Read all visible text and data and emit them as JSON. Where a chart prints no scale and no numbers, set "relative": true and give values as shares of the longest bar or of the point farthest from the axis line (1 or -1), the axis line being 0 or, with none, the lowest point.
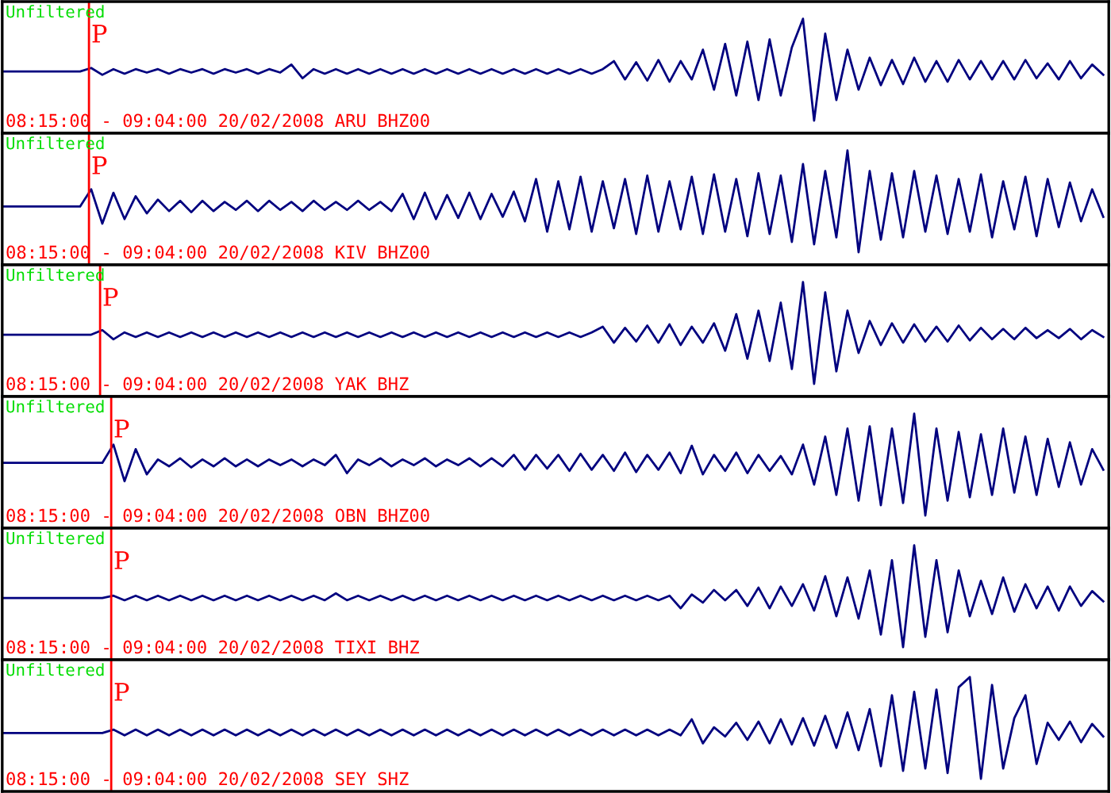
{
  "chart_data": [
    {
      "type": "line",
      "relative": true,
      "categories": [
        null,
        null,
        null,
        null,
        null,
        null,
        null,
        null,
        null,
        null,
        null,
        null,
        null,
        null,
        null,
        null,
        null,
        null,
        null,
        null,
        null,
        null,
        null,
        null,
        null,
        null,
        null,
        null,
        null,
        null,
        null,
        null,
        null,
        null,
        null,
        null,
        null,
        null,
        null,
        null,
        null,
        null,
        null,
        null,
        null,
        null,
        null,
        null,
        null,
        null,
        null,
        null,
        null,
        null,
        null,
        null,
        null,
        null,
        null,
        null,
        null,
        null,
        null,
        null,
        null,
        null,
        null,
        null,
        null,
        null,
        null,
        null,
        null,
        null,
        null,
        null,
        null,
        null,
        null,
        null,
        null,
        null,
        null,
        null,
        null,
        null,
        null,
        null,
        null,
        null,
        null,
        null,
        null,
        null,
        null,
        null,
        null,
        null,
        null,
        null
      ],
      "series": [
        {
          "color": "#00007f",
          "values": [
            0.54,
            0.54,
            0.54,
            0.54,
            0.54,
            0.54,
            0.54,
            0.54,
            0.57,
            0.51,
            0.56,
            0.52,
            0.56,
            0.53,
            0.56,
            0.52,
            0.56,
            0.53,
            0.56,
            0.52,
            0.56,
            0.53,
            0.56,
            0.52,
            0.56,
            0.53,
            0.6,
            0.48,
            0.56,
            0.52,
            0.56,
            0.52,
            0.56,
            0.52,
            0.56,
            0.52,
            0.56,
            0.52,
            0.56,
            0.52,
            0.56,
            0.52,
            0.56,
            0.52,
            0.56,
            0.52,
            0.56,
            0.52,
            0.56,
            0.52,
            0.56,
            0.52,
            0.56,
            0.52,
            0.56,
            0.63,
            0.47,
            0.62,
            0.46,
            0.64,
            0.45,
            0.63,
            0.47,
            0.73,
            0.38,
            0.78,
            0.33,
            0.8,
            0.29,
            0.82,
            0.33,
            0.75,
            1.0,
            0.11,
            0.87,
            0.29,
            0.73,
            0.38,
            0.66,
            0.42,
            0.64,
            0.43,
            0.66,
            0.45,
            0.63,
            0.45,
            0.64,
            0.47,
            0.63,
            0.47,
            0.63,
            0.47,
            0.64,
            0.48,
            0.61,
            0.47,
            0.63,
            0.48,
            0.6,
            0.51
          ]
        }
      ],
      "annotations": [
        "Unfiltered",
        "P",
        "08:15:00 - 09:04:00 20/02/2008 ARU BHZ00"
      ]
    },
    {
      "type": "line",
      "relative": true,
      "categories": [
        null,
        null,
        null,
        null,
        null,
        null,
        null,
        null,
        null,
        null,
        null,
        null,
        null,
        null,
        null,
        null,
        null,
        null,
        null,
        null,
        null,
        null,
        null,
        null,
        null,
        null,
        null,
        null,
        null,
        null,
        null,
        null,
        null,
        null,
        null,
        null,
        null,
        null,
        null,
        null,
        null,
        null,
        null,
        null,
        null,
        null,
        null,
        null,
        null,
        null,
        null,
        null,
        null,
        null,
        null,
        null,
        null,
        null,
        null,
        null,
        null,
        null,
        null,
        null,
        null,
        null,
        null,
        null,
        null,
        null,
        null,
        null,
        null,
        null,
        null,
        null,
        null,
        null,
        null,
        null,
        null,
        null,
        null,
        null,
        null,
        null,
        null,
        null,
        null,
        null,
        null,
        null,
        null,
        null,
        null,
        null,
        null,
        null,
        null,
        null
      ],
      "series": [
        {
          "color": "#00007f",
          "values": [
            0.51,
            0.51,
            0.51,
            0.51,
            0.51,
            0.51,
            0.51,
            0.51,
            0.66,
            0.36,
            0.63,
            0.4,
            0.6,
            0.45,
            0.57,
            0.47,
            0.56,
            0.46,
            0.56,
            0.47,
            0.55,
            0.48,
            0.56,
            0.47,
            0.56,
            0.48,
            0.55,
            0.47,
            0.56,
            0.48,
            0.55,
            0.48,
            0.56,
            0.48,
            0.55,
            0.47,
            0.62,
            0.4,
            0.63,
            0.4,
            0.61,
            0.41,
            0.63,
            0.4,
            0.62,
            0.42,
            0.64,
            0.38,
            0.75,
            0.29,
            0.73,
            0.31,
            0.77,
            0.29,
            0.73,
            0.32,
            0.75,
            0.27,
            0.78,
            0.29,
            0.73,
            0.31,
            0.77,
            0.27,
            0.79,
            0.29,
            0.75,
            0.25,
            0.8,
            0.27,
            0.78,
            0.2,
            0.88,
            0.18,
            0.82,
            0.24,
            1.0,
            0.11,
            0.82,
            0.22,
            0.8,
            0.24,
            0.82,
            0.29,
            0.78,
            0.27,
            0.75,
            0.29,
            0.79,
            0.24,
            0.73,
            0.31,
            0.77,
            0.25,
            0.75,
            0.33,
            0.72,
            0.38,
            0.66,
            0.42
          ]
        }
      ],
      "annotations": [
        "Unfiltered",
        "P",
        "08:15:00 - 09:04:00 20/02/2008 KIV BHZ00"
      ]
    },
    {
      "type": "line",
      "relative": true,
      "categories": [
        null,
        null,
        null,
        null,
        null,
        null,
        null,
        null,
        null,
        null,
        null,
        null,
        null,
        null,
        null,
        null,
        null,
        null,
        null,
        null,
        null,
        null,
        null,
        null,
        null,
        null,
        null,
        null,
        null,
        null,
        null,
        null,
        null,
        null,
        null,
        null,
        null,
        null,
        null,
        null,
        null,
        null,
        null,
        null,
        null,
        null,
        null,
        null,
        null,
        null,
        null,
        null,
        null,
        null,
        null,
        null,
        null,
        null,
        null,
        null,
        null,
        null,
        null,
        null,
        null,
        null,
        null,
        null,
        null,
        null,
        null,
        null,
        null,
        null,
        null,
        null,
        null,
        null,
        null,
        null,
        null,
        null,
        null,
        null,
        null,
        null,
        null,
        null,
        null,
        null,
        null,
        null,
        null,
        null,
        null,
        null,
        null,
        null,
        null,
        null
      ],
      "series": [
        {
          "color": "#00007f",
          "values": [
            0.54,
            0.54,
            0.54,
            0.54,
            0.54,
            0.54,
            0.54,
            0.54,
            0.54,
            0.58,
            0.5,
            0.56,
            0.52,
            0.56,
            0.52,
            0.56,
            0.52,
            0.56,
            0.52,
            0.56,
            0.52,
            0.56,
            0.52,
            0.56,
            0.52,
            0.56,
            0.52,
            0.56,
            0.52,
            0.56,
            0.52,
            0.56,
            0.52,
            0.56,
            0.52,
            0.56,
            0.52,
            0.56,
            0.52,
            0.56,
            0.52,
            0.56,
            0.52,
            0.56,
            0.52,
            0.56,
            0.52,
            0.56,
            0.52,
            0.56,
            0.52,
            0.56,
            0.52,
            0.56,
            0.61,
            0.47,
            0.6,
            0.48,
            0.62,
            0.47,
            0.63,
            0.45,
            0.61,
            0.47,
            0.64,
            0.4,
            0.72,
            0.33,
            0.75,
            0.31,
            0.82,
            0.24,
            1.0,
            0.11,
            0.91,
            0.22,
            0.75,
            0.38,
            0.66,
            0.45,
            0.64,
            0.47,
            0.63,
            0.48,
            0.61,
            0.48,
            0.62,
            0.49,
            0.6,
            0.5,
            0.59,
            0.5,
            0.6,
            0.51,
            0.58,
            0.51,
            0.59,
            0.5,
            0.58,
            0.52
          ]
        }
      ],
      "annotations": [
        "Unfiltered",
        "P",
        "08:15:00 - 09:04:00 20/02/2008 YAK BHZ"
      ]
    },
    {
      "type": "line",
      "relative": true,
      "categories": [
        null,
        null,
        null,
        null,
        null,
        null,
        null,
        null,
        null,
        null,
        null,
        null,
        null,
        null,
        null,
        null,
        null,
        null,
        null,
        null,
        null,
        null,
        null,
        null,
        null,
        null,
        null,
        null,
        null,
        null,
        null,
        null,
        null,
        null,
        null,
        null,
        null,
        null,
        null,
        null,
        null,
        null,
        null,
        null,
        null,
        null,
        null,
        null,
        null,
        null,
        null,
        null,
        null,
        null,
        null,
        null,
        null,
        null,
        null,
        null,
        null,
        null,
        null,
        null,
        null,
        null,
        null,
        null,
        null,
        null,
        null,
        null,
        null,
        null,
        null,
        null,
        null,
        null,
        null,
        null,
        null,
        null,
        null,
        null,
        null,
        null,
        null,
        null,
        null,
        null,
        null,
        null,
        null,
        null,
        null,
        null,
        null,
        null,
        null,
        null
      ],
      "series": [
        {
          "color": "#00007f",
          "values": [
            0.57,
            0.57,
            0.57,
            0.57,
            0.57,
            0.57,
            0.57,
            0.57,
            0.57,
            0.57,
            0.73,
            0.41,
            0.69,
            0.47,
            0.6,
            0.54,
            0.61,
            0.53,
            0.6,
            0.54,
            0.61,
            0.54,
            0.6,
            0.54,
            0.6,
            0.55,
            0.6,
            0.54,
            0.6,
            0.55,
            0.64,
            0.48,
            0.6,
            0.55,
            0.61,
            0.54,
            0.6,
            0.55,
            0.61,
            0.54,
            0.6,
            0.55,
            0.61,
            0.54,
            0.61,
            0.54,
            0.64,
            0.51,
            0.64,
            0.52,
            0.64,
            0.5,
            0.65,
            0.51,
            0.64,
            0.5,
            0.66,
            0.49,
            0.64,
            0.51,
            0.66,
            0.48,
            0.72,
            0.47,
            0.64,
            0.5,
            0.66,
            0.48,
            0.64,
            0.5,
            0.63,
            0.47,
            0.73,
            0.38,
            0.8,
            0.29,
            0.87,
            0.24,
            0.89,
            0.2,
            0.87,
            0.22,
            1.0,
            0.11,
            0.87,
            0.24,
            0.84,
            0.27,
            0.82,
            0.29,
            0.87,
            0.31,
            0.8,
            0.29,
            0.78,
            0.36,
            0.75,
            0.38,
            0.69,
            0.51
          ]
        }
      ],
      "annotations": [
        "Unfiltered",
        "P",
        "08:15:00 - 09:04:00 20/02/2008 OBN BHZ00"
      ]
    },
    {
      "type": "line",
      "relative": true,
      "categories": [
        null,
        null,
        null,
        null,
        null,
        null,
        null,
        null,
        null,
        null,
        null,
        null,
        null,
        null,
        null,
        null,
        null,
        null,
        null,
        null,
        null,
        null,
        null,
        null,
        null,
        null,
        null,
        null,
        null,
        null,
        null,
        null,
        null,
        null,
        null,
        null,
        null,
        null,
        null,
        null,
        null,
        null,
        null,
        null,
        null,
        null,
        null,
        null,
        null,
        null,
        null,
        null,
        null,
        null,
        null,
        null,
        null,
        null,
        null,
        null,
        null,
        null,
        null,
        null,
        null,
        null,
        null,
        null,
        null,
        null,
        null,
        null,
        null,
        null,
        null,
        null,
        null,
        null,
        null,
        null,
        null,
        null,
        null,
        null,
        null,
        null,
        null,
        null,
        null,
        null,
        null,
        null,
        null,
        null,
        null,
        null,
        null,
        null,
        null,
        null
      ],
      "series": [
        {
          "color": "#00007f",
          "values": [
            0.54,
            0.54,
            0.54,
            0.54,
            0.54,
            0.54,
            0.54,
            0.54,
            0.54,
            0.54,
            0.56,
            0.52,
            0.56,
            0.52,
            0.56,
            0.52,
            0.56,
            0.52,
            0.56,
            0.52,
            0.56,
            0.52,
            0.56,
            0.52,
            0.56,
            0.52,
            0.56,
            0.52,
            0.56,
            0.52,
            0.58,
            0.52,
            0.56,
            0.52,
            0.56,
            0.52,
            0.56,
            0.52,
            0.56,
            0.52,
            0.56,
            0.52,
            0.56,
            0.52,
            0.56,
            0.52,
            0.56,
            0.52,
            0.56,
            0.52,
            0.56,
            0.52,
            0.56,
            0.52,
            0.56,
            0.52,
            0.56,
            0.52,
            0.56,
            0.52,
            0.56,
            0.45,
            0.57,
            0.5,
            0.61,
            0.52,
            0.61,
            0.47,
            0.63,
            0.45,
            0.64,
            0.47,
            0.66,
            0.43,
            0.73,
            0.38,
            0.72,
            0.36,
            0.78,
            0.22,
            0.87,
            0.11,
            1.0,
            0.2,
            0.87,
            0.24,
            0.78,
            0.38,
            0.69,
            0.4,
            0.72,
            0.42,
            0.66,
            0.45,
            0.64,
            0.43,
            0.64,
            0.47,
            0.6,
            0.51
          ]
        }
      ],
      "annotations": [
        "Unfiltered",
        "P",
        "08:15:00 - 09:04:00 20/02/2008 TIXI BHZ"
      ]
    },
    {
      "type": "line",
      "relative": true,
      "categories": [
        null,
        null,
        null,
        null,
        null,
        null,
        null,
        null,
        null,
        null,
        null,
        null,
        null,
        null,
        null,
        null,
        null,
        null,
        null,
        null,
        null,
        null,
        null,
        null,
        null,
        null,
        null,
        null,
        null,
        null,
        null,
        null,
        null,
        null,
        null,
        null,
        null,
        null,
        null,
        null,
        null,
        null,
        null,
        null,
        null,
        null,
        null,
        null,
        null,
        null,
        null,
        null,
        null,
        null,
        null,
        null,
        null,
        null,
        null,
        null,
        null,
        null,
        null,
        null,
        null,
        null,
        null,
        null,
        null,
        null,
        null,
        null,
        null,
        null,
        null,
        null,
        null,
        null,
        null,
        null,
        null,
        null,
        null,
        null,
        null,
        null,
        null,
        null,
        null,
        null,
        null,
        null,
        null,
        null,
        null,
        null,
        null,
        null,
        null,
        null
      ],
      "series": [
        {
          "color": "#00007f",
          "values": [
            0.51,
            0.51,
            0.51,
            0.51,
            0.51,
            0.51,
            0.51,
            0.51,
            0.51,
            0.51,
            0.54,
            0.49,
            0.54,
            0.49,
            0.54,
            0.49,
            0.54,
            0.49,
            0.54,
            0.49,
            0.54,
            0.49,
            0.54,
            0.49,
            0.54,
            0.49,
            0.54,
            0.49,
            0.54,
            0.49,
            0.54,
            0.49,
            0.54,
            0.49,
            0.54,
            0.49,
            0.54,
            0.49,
            0.54,
            0.49,
            0.54,
            0.49,
            0.54,
            0.49,
            0.54,
            0.49,
            0.54,
            0.49,
            0.54,
            0.49,
            0.54,
            0.49,
            0.54,
            0.49,
            0.54,
            0.49,
            0.54,
            0.49,
            0.54,
            0.49,
            0.54,
            0.49,
            0.63,
            0.42,
            0.56,
            0.48,
            0.6,
            0.45,
            0.61,
            0.42,
            0.63,
            0.41,
            0.64,
            0.4,
            0.66,
            0.38,
            0.69,
            0.36,
            0.72,
            0.22,
            0.84,
            0.18,
            0.87,
            0.2,
            0.89,
            0.16,
            0.91,
            1.0,
            0.11,
            0.93,
            0.2,
            0.64,
            0.84,
            0.24,
            0.6,
            0.45,
            0.61,
            0.43,
            0.59,
            0.48
          ]
        }
      ],
      "annotations": [
        "Unfiltered",
        "P",
        "08:15:00 - 09:04:00 20/02/2008 SEY SHZ"
      ]
    }
  ]
}
